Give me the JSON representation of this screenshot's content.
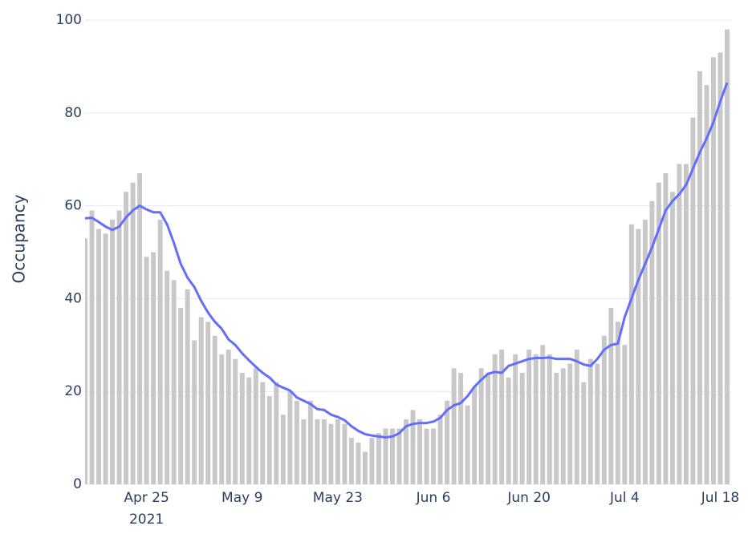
{
  "chart_data": {
    "type": "bar_line",
    "y_label": "Occupancy",
    "x_year_label": "2021",
    "x": [
      "2021-04-16",
      "2021-04-17",
      "2021-04-18",
      "2021-04-19",
      "2021-04-20",
      "2021-04-21",
      "2021-04-22",
      "2021-04-23",
      "2021-04-24",
      "2021-04-25",
      "2021-04-26",
      "2021-04-27",
      "2021-04-28",
      "2021-04-29",
      "2021-04-30",
      "2021-05-01",
      "2021-05-02",
      "2021-05-03",
      "2021-05-04",
      "2021-05-05",
      "2021-05-06",
      "2021-05-07",
      "2021-05-08",
      "2021-05-09",
      "2021-05-10",
      "2021-05-11",
      "2021-05-12",
      "2021-05-13",
      "2021-05-14",
      "2021-05-15",
      "2021-05-16",
      "2021-05-17",
      "2021-05-18",
      "2021-05-19",
      "2021-05-20",
      "2021-05-21",
      "2021-05-22",
      "2021-05-23",
      "2021-05-24",
      "2021-05-25",
      "2021-05-26",
      "2021-05-27",
      "2021-05-28",
      "2021-05-29",
      "2021-05-30",
      "2021-05-31",
      "2021-06-01",
      "2021-06-02",
      "2021-06-03",
      "2021-06-04",
      "2021-06-05",
      "2021-06-06",
      "2021-06-07",
      "2021-06-08",
      "2021-06-09",
      "2021-06-10",
      "2021-06-11",
      "2021-06-12",
      "2021-06-13",
      "2021-06-14",
      "2021-06-15",
      "2021-06-16",
      "2021-06-17",
      "2021-06-18",
      "2021-06-19",
      "2021-06-20",
      "2021-06-21",
      "2021-06-22",
      "2021-06-23",
      "2021-06-24",
      "2021-06-25",
      "2021-06-26",
      "2021-06-27",
      "2021-06-28",
      "2021-06-29",
      "2021-06-30",
      "2021-07-01",
      "2021-07-02",
      "2021-07-03",
      "2021-07-04",
      "2021-07-05",
      "2021-07-06",
      "2021-07-07",
      "2021-07-08",
      "2021-07-09",
      "2021-07-10",
      "2021-07-11",
      "2021-07-12",
      "2021-07-13",
      "2021-07-14",
      "2021-07-15",
      "2021-07-16",
      "2021-07-17",
      "2021-07-18",
      "2021-07-19"
    ],
    "series": [
      {
        "kind": "bar",
        "color": "#c8c8c8",
        "values": [
          53,
          59,
          55,
          54,
          57,
          59,
          63,
          65,
          67,
          49,
          50,
          57,
          46,
          44,
          38,
          42,
          31,
          36,
          35,
          32,
          28,
          29,
          27,
          24,
          23,
          25,
          22,
          19,
          22,
          15,
          20,
          18,
          14,
          18,
          14,
          14,
          13,
          14,
          13,
          10,
          9,
          7,
          10,
          11,
          12,
          12,
          12,
          14,
          16,
          14,
          12,
          12,
          15,
          18,
          25,
          24,
          17,
          21,
          25,
          24,
          28,
          29,
          23,
          28,
          24,
          29,
          28,
          30,
          28,
          24,
          25,
          26,
          29,
          22,
          27,
          26,
          32,
          38,
          35,
          30,
          56,
          55,
          57,
          61,
          65,
          67,
          63,
          69,
          69,
          79,
          89,
          86,
          92,
          93,
          98
        ]
      },
      {
        "kind": "line",
        "color": "#636efa",
        "values": [
          57.3,
          57.4,
          56.5,
          55.5,
          54.8,
          55.5,
          57.5,
          59,
          60,
          59.2,
          58.6,
          58.6,
          56,
          52,
          47.5,
          44.5,
          42.5,
          39.5,
          37,
          35,
          33.5,
          31.2,
          30,
          28.2,
          26.7,
          25.3,
          24,
          23,
          21.5,
          20.8,
          20.2,
          18.7,
          18,
          17.3,
          16.2,
          16,
          15,
          14.5,
          13.8,
          12.5,
          11.5,
          10.8,
          10.5,
          10.3,
          10.1,
          10.3,
          11,
          12.5,
          13,
          13.2,
          13.2,
          13.5,
          14.3,
          16,
          17,
          17.5,
          19,
          21,
          22.5,
          23.8,
          24.2,
          24,
          25.5,
          26,
          26.5,
          27,
          27.2,
          27.2,
          27.3,
          27,
          27,
          27,
          26.5,
          25.8,
          25.5,
          27,
          29,
          30,
          30.3,
          36,
          40,
          44,
          47.5,
          51,
          55,
          59,
          61,
          62.5,
          64.5,
          68,
          71.5,
          74.5,
          78,
          82.5,
          86.5
        ]
      }
    ],
    "xlim": [
      "2021-04-16",
      "2021-07-19"
    ],
    "xticks": [
      {
        "value": "2021-04-25",
        "label": "Apr 25"
      },
      {
        "value": "2021-05-09",
        "label": "May 9"
      },
      {
        "value": "2021-05-23",
        "label": "May 23"
      },
      {
        "value": "2021-06-06",
        "label": "Jun 6"
      },
      {
        "value": "2021-06-20",
        "label": "Jun 20"
      },
      {
        "value": "2021-07-04",
        "label": "Jul 4"
      },
      {
        "value": "2021-07-18",
        "label": "Jul 18"
      }
    ],
    "ylim": [
      0,
      100
    ],
    "yticks": [
      0,
      20,
      40,
      60,
      80,
      100
    ],
    "grid": true
  }
}
